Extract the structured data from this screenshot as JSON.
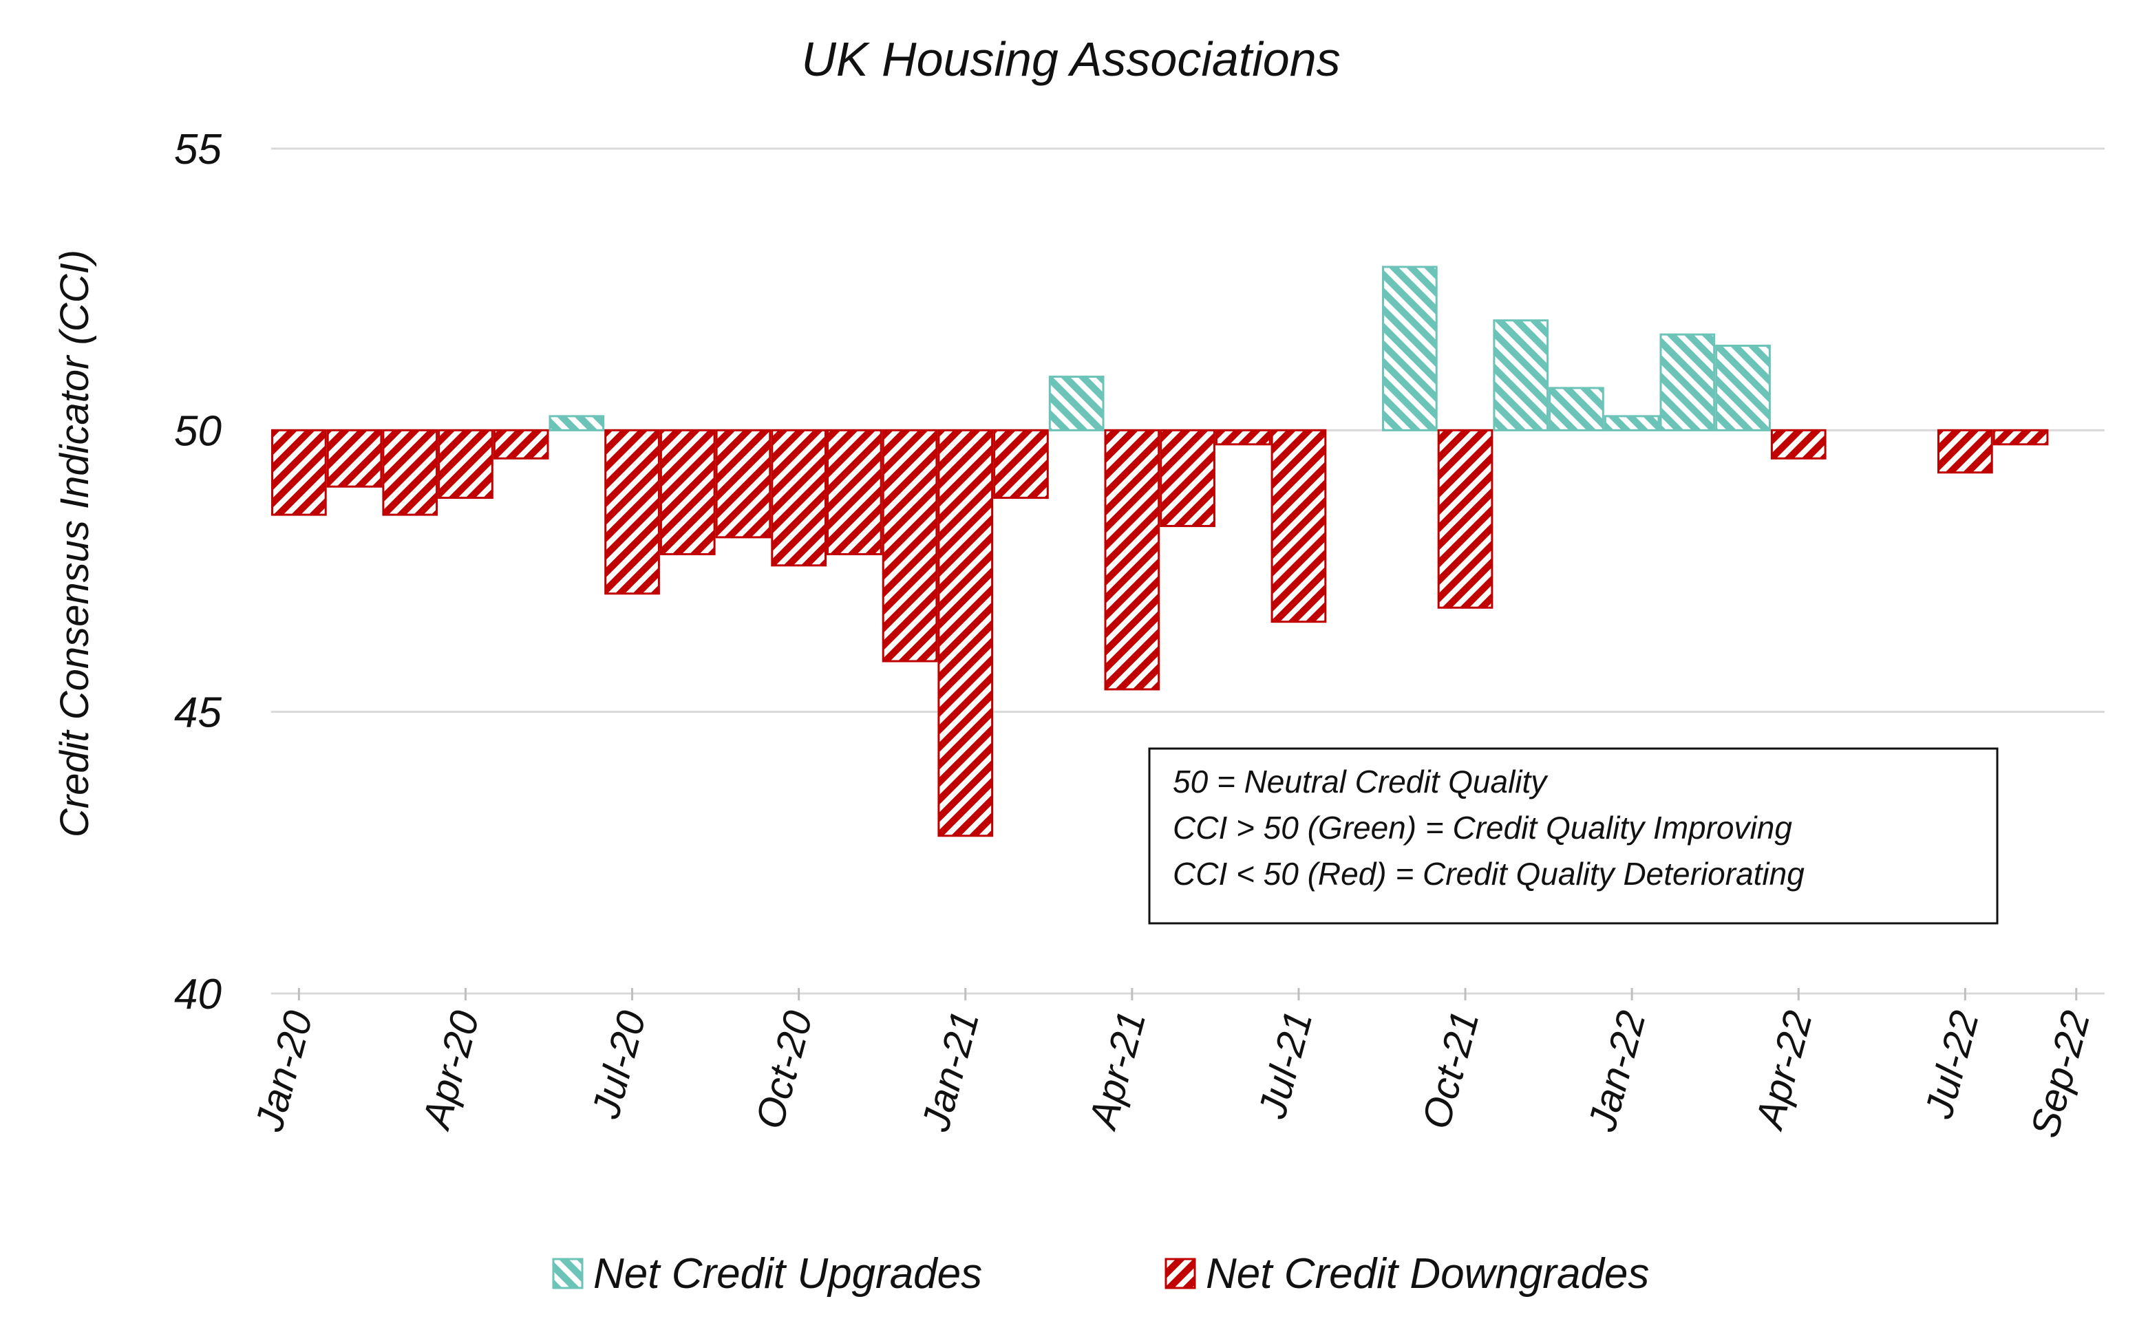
{
  "chart_data": {
    "type": "bar",
    "title": "UK Housing Associations",
    "xlabel": "",
    "ylabel": "Credit Consensus Indicator (CCI)",
    "ylim": [
      40,
      55
    ],
    "baseline": 50,
    "yticks": [
      40,
      45,
      50,
      55
    ],
    "grid": true,
    "legend_position": "bottom",
    "x_tick_labels": [
      "Jan-20",
      "Apr-20",
      "Jul-20",
      "Oct-20",
      "Jan-21",
      "Apr-21",
      "Jul-21",
      "Oct-21",
      "Jan-22",
      "Apr-22",
      "Jul-22",
      "Sep-22"
    ],
    "categories": [
      "Jan-20",
      "Feb-20",
      "Mar-20",
      "Apr-20",
      "May-20",
      "Jun-20",
      "Jul-20",
      "Aug-20",
      "Sep-20",
      "Oct-20",
      "Nov-20",
      "Dec-20",
      "Jan-21",
      "Feb-21",
      "Mar-21",
      "Apr-21",
      "May-21",
      "Jun-21",
      "Jul-21",
      "Aug-21",
      "Sep-21",
      "Oct-21",
      "Nov-21",
      "Dec-21",
      "Jan-22",
      "Feb-22",
      "Mar-22",
      "Apr-22",
      "May-22",
      "Jun-22",
      "Jul-22",
      "Aug-22",
      "Sep-22"
    ],
    "values": [
      48.5,
      49.0,
      48.5,
      48.8,
      49.5,
      50.25,
      47.1,
      47.8,
      48.1,
      47.6,
      47.8,
      45.9,
      42.8,
      48.8,
      50.95,
      45.4,
      48.3,
      49.75,
      46.6,
      null,
      52.9,
      46.85,
      51.95,
      50.75,
      50.25,
      51.7,
      51.5,
      49.5,
      null,
      null,
      49.25,
      49.75,
      null
    ],
    "series": [
      {
        "name": "Net Credit Upgrades",
        "color": "#6cc3b7",
        "rule": "CCI > 50"
      },
      {
        "name": "Net Credit Downgrades",
        "color": "#c00000",
        "rule": "CCI < 50"
      }
    ],
    "annotation": {
      "lines": [
        "50 = Neutral Credit Quality",
        "CCI > 50 (Green) = Credit Quality Improving",
        "CCI < 50 (Red) = Credit Quality Deteriorating"
      ]
    }
  },
  "colors": {
    "upgrade": "#6cc3b7",
    "downgrade": "#c00000",
    "grid": "#d9d9d9",
    "axis": "#bfbfbf"
  }
}
